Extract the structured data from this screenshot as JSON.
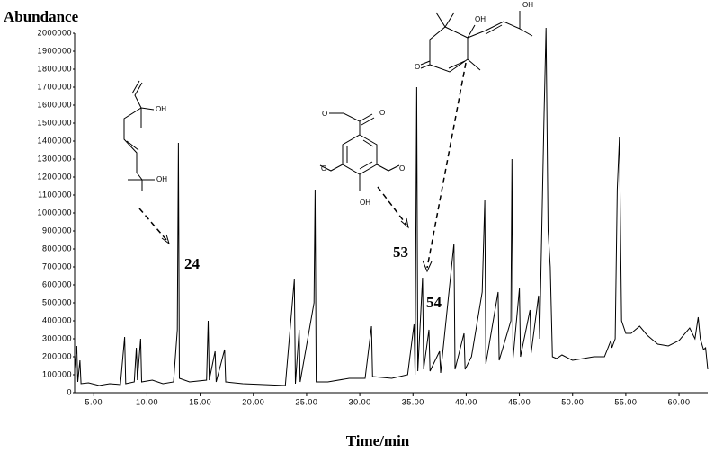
{
  "chart_data": {
    "type": "line",
    "ylabel": "Abundance",
    "xlabel": "Time/min",
    "color": "#000000",
    "xlim": [
      3.2,
      62.7
    ],
    "ylim": [
      0,
      2000000
    ],
    "xticks": [
      {
        "value": 5,
        "label": "5.00"
      },
      {
        "value": 10,
        "label": "10.00"
      },
      {
        "value": 15,
        "label": "15.00"
      },
      {
        "value": 20,
        "label": "20.00"
      },
      {
        "value": 25,
        "label": "25.00"
      },
      {
        "value": 30,
        "label": "30.00"
      },
      {
        "value": 35,
        "label": "35.00"
      },
      {
        "value": 40,
        "label": "40.00"
      },
      {
        "value": 45,
        "label": "45.00"
      },
      {
        "value": 50,
        "label": "50.00"
      },
      {
        "value": 55,
        "label": "55.00"
      },
      {
        "value": 60,
        "label": "60.00"
      }
    ],
    "yticks": [
      0,
      100000,
      200000,
      300000,
      400000,
      500000,
      600000,
      700000,
      800000,
      900000,
      1000000,
      1100000,
      1200000,
      1300000,
      1400000,
      1500000,
      1600000,
      1700000,
      1800000,
      1900000,
      2000000
    ],
    "x": [
      3.2,
      3.4,
      3.5,
      3.7,
      3.8,
      4.5,
      5.5,
      6.5,
      7.5,
      7.9,
      8.0,
      8.8,
      9.0,
      9.1,
      9.4,
      9.5,
      10.5,
      11.5,
      12.5,
      12.85,
      12.95,
      13.05,
      14,
      15.6,
      15.75,
      15.85,
      16.4,
      16.5,
      17.3,
      17.4,
      19,
      21,
      23,
      23.85,
      23.95,
      24.3,
      24.4,
      25.7,
      25.8,
      25.9,
      27,
      29,
      30.5,
      31.1,
      31.2,
      33,
      34.5,
      35.1,
      35.2,
      35.35,
      35.45,
      35.9,
      36.0,
      36.5,
      36.6,
      37.5,
      37.6,
      38.85,
      38.95,
      39.8,
      39.9,
      40.5,
      41.5,
      41.75,
      41.85,
      43.0,
      43.1,
      44.2,
      44.3,
      44.4,
      45.0,
      45.1,
      46.0,
      46.1,
      46.8,
      46.9,
      47.3,
      47.5,
      47.7,
      47.9,
      48.1,
      48.5,
      49,
      50,
      51,
      52,
      53,
      53.6,
      53.7,
      54.0,
      54.2,
      54.4,
      54.6,
      55,
      55.5,
      56.3,
      57,
      58,
      59,
      60,
      61,
      61.5,
      61.8,
      62,
      62.3,
      62.5,
      62.7
    ],
    "values": [
      130000,
      260000,
      60000,
      180000,
      50000,
      55000,
      40000,
      50000,
      45000,
      310000,
      50000,
      60000,
      250000,
      70000,
      300000,
      60000,
      70000,
      50000,
      60000,
      350000,
      1390000,
      80000,
      60000,
      70000,
      400000,
      70000,
      230000,
      60000,
      240000,
      60000,
      50000,
      45000,
      40000,
      630000,
      50000,
      350000,
      60000,
      500000,
      1130000,
      60000,
      60000,
      80000,
      80000,
      370000,
      90000,
      80000,
      100000,
      380000,
      100000,
      1700000,
      120000,
      640000,
      130000,
      350000,
      120000,
      230000,
      110000,
      830000,
      130000,
      330000,
      130000,
      200000,
      560000,
      1070000,
      160000,
      560000,
      180000,
      400000,
      1300000,
      190000,
      580000,
      200000,
      460000,
      220000,
      540000,
      300000,
      1500000,
      2030000,
      900000,
      700000,
      200000,
      190000,
      210000,
      180000,
      190000,
      200000,
      200000,
      290000,
      250000,
      300000,
      1130000,
      1420000,
      400000,
      330000,
      330000,
      370000,
      320000,
      270000,
      260000,
      290000,
      360000,
      300000,
      420000,
      300000,
      240000,
      250000,
      130000
    ],
    "annotations": [
      "24",
      "53",
      "54"
    ],
    "structures": [
      {
        "atoms": [
          "OH",
          "OH"
        ]
      },
      {
        "atoms": [
          "O",
          "O",
          "O",
          "O",
          "OH"
        ]
      },
      {
        "atoms": [
          "OH",
          "OH",
          "O"
        ]
      }
    ]
  }
}
